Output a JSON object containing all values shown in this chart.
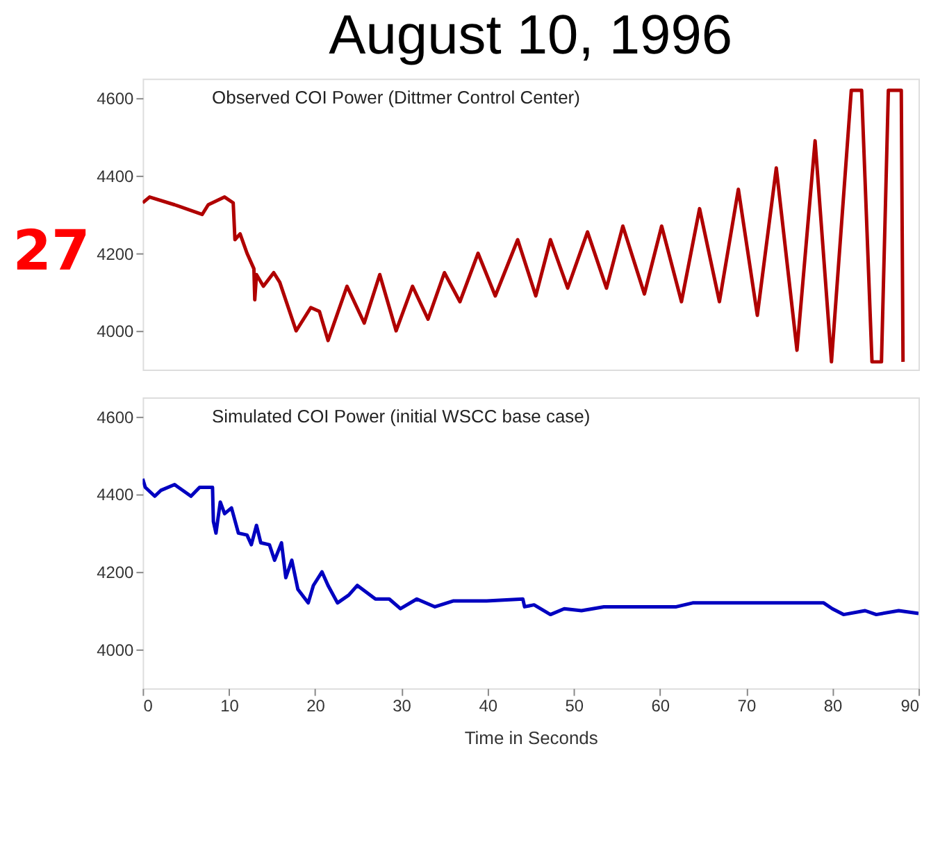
{
  "chart_data": [
    {
      "type": "line",
      "title": "August 10, 1996",
      "annotations": [
        "Observed COI Power (Dittmer Control Center)",
        "27"
      ],
      "xlim": [
        0,
        90
      ],
      "ylim": [
        3900,
        4650
      ],
      "yticks": [
        4000,
        4200,
        4400,
        4600
      ],
      "tick_labels": "y",
      "grid": false,
      "legend": false,
      "marker": "none",
      "line_style": "solid",
      "series": [
        {
          "color": "#b00000",
          "x": [
            0,
            0.8,
            3.7,
            6.9,
            7.6,
            9.5,
            10.5,
            10.7,
            11.3,
            12.1,
            12.9,
            13.0,
            13.2,
            14.0,
            15.2,
            15.9,
            17.8,
            19.5,
            20.5,
            21.5,
            23.7,
            25.7,
            27.5,
            29.4,
            31.3,
            33.1,
            35.0,
            36.8,
            38.9,
            40.9,
            43.5,
            45.6,
            47.3,
            49.3,
            51.6,
            53.8,
            55.7,
            58.2,
            60.2,
            62.5,
            64.6,
            66.9,
            69.1,
            71.3,
            73.5,
            75.9,
            78.0,
            79.9,
            82.2,
            83.4,
            84.6,
            85.7,
            86.5,
            88.0,
            88.2
          ],
          "values": [
            4330,
            4345,
            4325,
            4300,
            4325,
            4345,
            4330,
            4235,
            4250,
            4200,
            4160,
            4080,
            4145,
            4115,
            4150,
            4125,
            4000,
            4060,
            4050,
            3975,
            4115,
            4020,
            4145,
            4000,
            4115,
            4030,
            4150,
            4075,
            4200,
            4090,
            4235,
            4090,
            4235,
            4110,
            4255,
            4110,
            4270,
            4095,
            4270,
            4075,
            4315,
            4075,
            4365,
            4040,
            4420,
            3950,
            4490,
            3920,
            4620,
            4620,
            3920,
            3920,
            4620,
            4620,
            3920
          ]
        }
      ]
    },
    {
      "type": "line",
      "annotations": [
        "Simulated COI Power (initial WSCC base case)"
      ],
      "xlabel": "Time in Seconds",
      "xlim": [
        0,
        90
      ],
      "xticks": [
        0,
        10,
        20,
        30,
        40,
        50,
        60,
        70,
        80,
        90
      ],
      "ylim": [
        3900,
        4650
      ],
      "yticks": [
        4000,
        4200,
        4400,
        4600
      ],
      "grid": false,
      "legend": false,
      "marker": "none",
      "line_style": "solid",
      "series": [
        {
          "color": "#0000c0",
          "x": [
            0,
            0.3,
            1.4,
            2.1,
            3.7,
            5.6,
            6.6,
            8.1,
            8.2,
            8.5,
            9.0,
            9.5,
            10.3,
            11.1,
            12.1,
            12.6,
            13.2,
            13.7,
            14.7,
            15.3,
            16.1,
            16.6,
            17.3,
            18.0,
            19.2,
            19.8,
            20.8,
            21.5,
            22.6,
            23.9,
            24.9,
            27.0,
            28.6,
            29.9,
            31.8,
            33.9,
            36.0,
            39.9,
            44.1,
            44.3,
            45.4,
            47.3,
            48.9,
            50.9,
            53.5,
            61.9,
            63.8,
            68.3,
            75.4,
            79.0,
            80.0,
            81.3,
            83.8,
            85.1,
            87.7,
            90
          ],
          "values": [
            4440,
            4418,
            4395,
            4410,
            4425,
            4395,
            4418,
            4418,
            4330,
            4300,
            4380,
            4350,
            4365,
            4300,
            4295,
            4270,
            4320,
            4275,
            4270,
            4230,
            4275,
            4185,
            4230,
            4155,
            4120,
            4165,
            4200,
            4165,
            4120,
            4140,
            4165,
            4130,
            4130,
            4105,
            4130,
            4110,
            4125,
            4125,
            4130,
            4110,
            4115,
            4090,
            4105,
            4100,
            4110,
            4110,
            4120,
            4120,
            4120,
            4120,
            4105,
            4090,
            4100,
            4090,
            4100,
            4093
          ]
        }
      ]
    }
  ]
}
